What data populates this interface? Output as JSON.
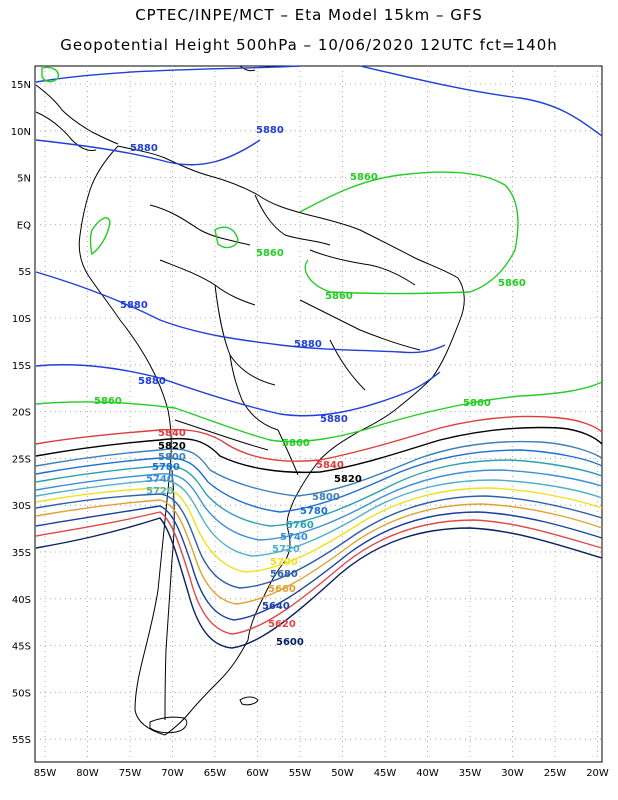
{
  "header": {
    "line1": "CPTEC/INPE/MCT –  Eta Model 15km – GFS",
    "line2": "Geopotential Height 500hPa – 10/06/2020 12UTC fct=140h"
  },
  "axes": {
    "lat_labels": [
      "15N",
      "10N",
      "5N",
      "EQ",
      "5S",
      "10S",
      "15S",
      "20S",
      "25S",
      "30S",
      "35S",
      "40S",
      "45S",
      "50S",
      "55S"
    ],
    "lon_labels": [
      "85W",
      "80W",
      "75W",
      "70W",
      "65W",
      "60W",
      "55W",
      "50W",
      "45W",
      "40W",
      "35W",
      "30W",
      "25W",
      "20W"
    ]
  },
  "contours": {
    "colors": {
      "5880": "#1f3fd6",
      "5860": "#22cc22",
      "5840": "#e03a3a",
      "5820": "#000000",
      "5800": "#3a7fb8",
      "5780": "#1a6fd0",
      "5760": "#2aa0b0",
      "5740": "#3b8fd8",
      "5720": "#4fb0c8",
      "5700": "#f0e020",
      "5680": "#2f5fa8",
      "5660": "#e0a030",
      "5640": "#1a3fa0",
      "5620": "#e04848",
      "5600": "#0a2060"
    },
    "labels": [
      {
        "text": "5880",
        "level": "5880"
      },
      {
        "text": "5880",
        "level": "5880"
      },
      {
        "text": "5880",
        "level": "5880"
      },
      {
        "text": "5880",
        "level": "5880"
      },
      {
        "text": "5880",
        "level": "5880"
      },
      {
        "text": "5880",
        "level": "5880"
      },
      {
        "text": "5860",
        "level": "5860"
      },
      {
        "text": "5860",
        "level": "5860"
      },
      {
        "text": "5860",
        "level": "5860"
      },
      {
        "text": "5860",
        "level": "5860"
      },
      {
        "text": "5860",
        "level": "5860"
      },
      {
        "text": "5860",
        "level": "5860"
      },
      {
        "text": "5860",
        "level": "5860"
      },
      {
        "text": "5840",
        "level": "5840"
      },
      {
        "text": "5840",
        "level": "5840"
      },
      {
        "text": "5820",
        "level": "5820"
      },
      {
        "text": "5820",
        "level": "5820"
      },
      {
        "text": "5800",
        "level": "5800"
      },
      {
        "text": "5800",
        "level": "5800"
      },
      {
        "text": "5780",
        "level": "5780"
      },
      {
        "text": "5780",
        "level": "5780"
      },
      {
        "text": "5760",
        "level": "5760"
      },
      {
        "text": "5740",
        "level": "5740"
      },
      {
        "text": "5720",
        "level": "5720"
      },
      {
        "text": "5700",
        "level": "5700"
      },
      {
        "text": "5680",
        "level": "5680"
      },
      {
        "text": "5660",
        "level": "5660"
      },
      {
        "text": "5640",
        "level": "5640"
      },
      {
        "text": "5620",
        "level": "5620"
      },
      {
        "text": "5600",
        "level": "5600"
      },
      {
        "text": "5740",
        "level": "5740"
      },
      {
        "text": "5720",
        "level": "5720"
      }
    ]
  }
}
